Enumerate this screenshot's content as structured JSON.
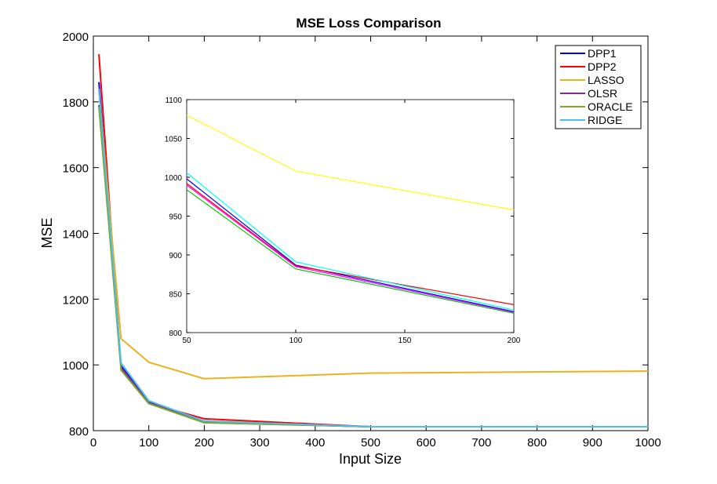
{
  "chart_data": [
    {
      "type": "line",
      "title": "MSE Loss Comparison",
      "xlabel": "Input Size",
      "ylabel": "MSE",
      "xlim": [
        0,
        1000
      ],
      "ylim": [
        800,
        2000
      ],
      "xticks": [
        0,
        100,
        200,
        300,
        400,
        500,
        600,
        700,
        800,
        900,
        1000
      ],
      "yticks": [
        800,
        1000,
        1200,
        1400,
        1600,
        1800,
        2000
      ],
      "grid": false,
      "legend_placement": "top-right",
      "x": [
        10,
        50,
        100,
        200,
        500,
        1000
      ],
      "series": [
        {
          "name": "DPP1",
          "color": "#0000ff",
          "values": [
            1860,
            997,
            887,
            826,
            812,
            812
          ]
        },
        {
          "name": "DPP2",
          "color": "#ff0000",
          "values": [
            1945,
            990,
            884,
            836,
            812,
            812
          ]
        },
        {
          "name": "LASSO",
          "color": "#edb120",
          "values": [
            1835,
            1080,
            1008,
            958,
            975,
            981
          ]
        },
        {
          "name": "OLSR",
          "color": "#7e2f8e",
          "values": [
            1790,
            993,
            885,
            825,
            812,
            812
          ]
        },
        {
          "name": "ORACLE",
          "color": "#77ac30",
          "values": [
            1785,
            984,
            882,
            824,
            812,
            812
          ]
        },
        {
          "name": "RIDGE",
          "color": "#4dbeee",
          "values": [
            1840,
            1006,
            891,
            829,
            812,
            812
          ]
        }
      ]
    },
    {
      "type": "line",
      "xlim": [
        50,
        200
      ],
      "ylim": [
        800,
        1100
      ],
      "xticks": [
        50,
        100,
        150,
        200
      ],
      "yticks": [
        800,
        850,
        900,
        950,
        1000,
        1050,
        1100
      ],
      "grid": false,
      "x": [
        50,
        100,
        200
      ],
      "series": [
        {
          "color": "#0000ff",
          "values": [
            998,
            887,
            827
          ]
        },
        {
          "color": "#ff0000",
          "values": [
            992,
            886,
            836
          ]
        },
        {
          "color": "#ffff00",
          "values": [
            1080,
            1008,
            958
          ]
        },
        {
          "color": "#ff00ff",
          "values": [
            990,
            885,
            826
          ]
        },
        {
          "color": "#00cc00",
          "values": [
            984,
            882,
            825
          ]
        },
        {
          "color": "#00ffff",
          "values": [
            1006,
            891,
            829
          ]
        }
      ]
    }
  ]
}
